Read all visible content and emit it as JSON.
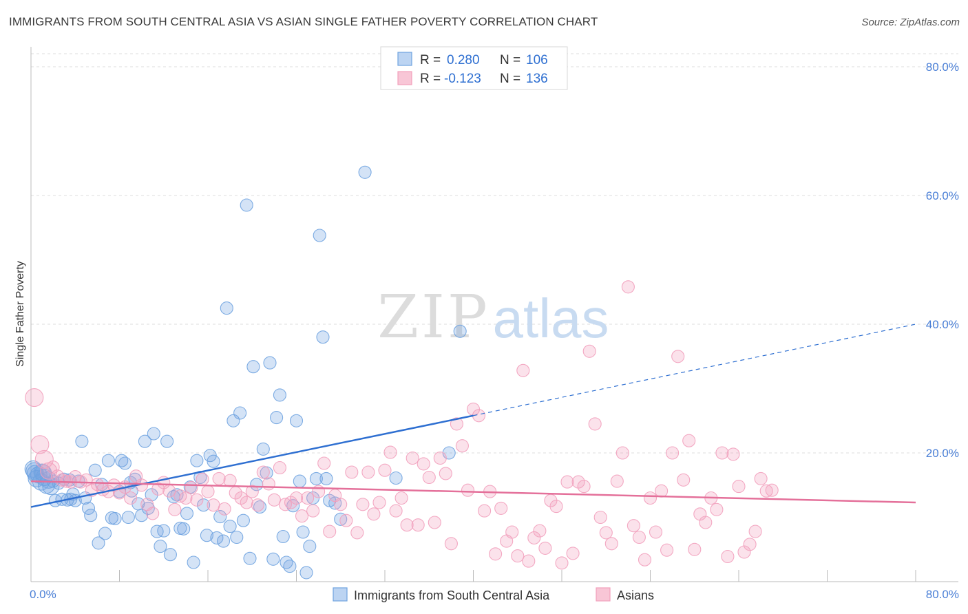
{
  "title": "IMMIGRANTS FROM SOUTH CENTRAL ASIA VS ASIAN SINGLE FATHER POVERTY CORRELATION CHART",
  "source": "Source: ZipAtlas.com",
  "watermark": {
    "zip": "ZIP",
    "atlas": "atlas"
  },
  "chart_data": {
    "type": "scatter",
    "xlabel": "",
    "ylabel": "Single Father Poverty",
    "xlim": [
      0,
      80
    ],
    "ylim": [
      0,
      80
    ],
    "x_tick_labels": [
      "0.0%",
      "80.0%"
    ],
    "y_ticks": [
      20,
      40,
      60,
      80
    ],
    "y_tick_labels": [
      "20.0%",
      "40.0%",
      "60.0%",
      "80.0%"
    ],
    "grid": true,
    "legend_position": "top-center",
    "legend": [
      {
        "r_label": "R =",
        "r_value": "0.280",
        "n_label": "N =",
        "n_value": "106"
      },
      {
        "r_label": "R =",
        "r_value": "-0.123",
        "n_label": "N =",
        "n_value": "136"
      }
    ],
    "series": [
      {
        "name": "Immigrants from South Central Asia",
        "color": "#6fa3e0",
        "line_color": "#2e6fd1",
        "trend": {
          "x0": 0,
          "y0": 11.6,
          "x1": 40,
          "y1": 25.8,
          "dash_to_x": 80,
          "dash_to_y": 40.0
        },
        "points": [
          [
            0.2,
            17.5
          ],
          [
            0.4,
            16.8
          ],
          [
            0.5,
            16.0
          ],
          [
            0.7,
            16.6
          ],
          [
            0.9,
            15.5
          ],
          [
            1.0,
            17.0
          ],
          [
            1.2,
            16.2
          ],
          [
            1.4,
            15.0
          ],
          [
            1.6,
            15.8
          ],
          [
            1.8,
            14.8
          ],
          [
            2.0,
            15.6
          ],
          [
            2.2,
            12.6
          ],
          [
            2.5,
            15.3
          ],
          [
            2.8,
            12.8
          ],
          [
            3.0,
            15.9
          ],
          [
            3.3,
            12.7
          ],
          [
            3.5,
            15.8
          ],
          [
            3.8,
            13.6
          ],
          [
            4.0,
            12.6
          ],
          [
            4.3,
            15.6
          ],
          [
            4.6,
            21.8
          ],
          [
            4.9,
            13.0
          ],
          [
            5.2,
            11.4
          ],
          [
            5.4,
            10.3
          ],
          [
            5.8,
            17.3
          ],
          [
            6.1,
            6.0
          ],
          [
            6.4,
            15.1
          ],
          [
            6.7,
            7.5
          ],
          [
            7.0,
            18.8
          ],
          [
            7.3,
            9.9
          ],
          [
            7.6,
            9.8
          ],
          [
            8.0,
            14.0
          ],
          [
            8.2,
            18.8
          ],
          [
            8.5,
            18.4
          ],
          [
            8.8,
            10.0
          ],
          [
            9.1,
            14.1
          ],
          [
            9.4,
            15.9
          ],
          [
            9.7,
            12.1
          ],
          [
            10.0,
            10.3
          ],
          [
            10.3,
            21.8
          ],
          [
            10.6,
            11.4
          ],
          [
            10.9,
            13.5
          ],
          [
            11.1,
            23.0
          ],
          [
            11.4,
            7.8
          ],
          [
            11.7,
            5.5
          ],
          [
            12.0,
            7.9
          ],
          [
            12.3,
            21.8
          ],
          [
            12.6,
            4.2
          ],
          [
            12.9,
            13.2
          ],
          [
            13.2,
            13.5
          ],
          [
            13.5,
            8.3
          ],
          [
            13.8,
            8.2
          ],
          [
            14.1,
            10.6
          ],
          [
            14.4,
            14.7
          ],
          [
            14.7,
            3.0
          ],
          [
            15.0,
            18.8
          ],
          [
            15.3,
            16.2
          ],
          [
            15.6,
            11.9
          ],
          [
            15.9,
            7.2
          ],
          [
            16.2,
            19.6
          ],
          [
            16.5,
            18.7
          ],
          [
            16.8,
            6.8
          ],
          [
            17.1,
            10.1
          ],
          [
            17.4,
            6.3
          ],
          [
            17.7,
            42.5
          ],
          [
            18.0,
            8.6
          ],
          [
            18.3,
            25.0
          ],
          [
            18.6,
            6.9
          ],
          [
            18.9,
            26.2
          ],
          [
            19.2,
            9.5
          ],
          [
            19.5,
            58.5
          ],
          [
            19.8,
            3.6
          ],
          [
            20.1,
            33.4
          ],
          [
            20.4,
            15.1
          ],
          [
            20.7,
            11.6
          ],
          [
            21.0,
            20.6
          ],
          [
            21.3,
            16.9
          ],
          [
            21.6,
            34.0
          ],
          [
            21.9,
            3.5
          ],
          [
            22.2,
            25.5
          ],
          [
            22.5,
            29.0
          ],
          [
            22.8,
            7.0
          ],
          [
            23.1,
            3.0
          ],
          [
            23.4,
            2.4
          ],
          [
            23.7,
            11.8
          ],
          [
            24.0,
            25.0
          ],
          [
            24.3,
            15.6
          ],
          [
            24.6,
            7.7
          ],
          [
            24.9,
            1.4
          ],
          [
            25.2,
            5.5
          ],
          [
            25.5,
            13.0
          ],
          [
            25.8,
            16.0
          ],
          [
            26.1,
            53.8
          ],
          [
            26.4,
            38.0
          ],
          [
            26.7,
            16.0
          ],
          [
            27.0,
            12.6
          ],
          [
            27.5,
            12.2
          ],
          [
            28.0,
            9.7
          ],
          [
            30.2,
            63.6
          ],
          [
            33.0,
            16.1
          ],
          [
            37.8,
            20.0
          ],
          [
            38.8,
            38.9
          ],
          [
            0.3,
            17.2
          ],
          [
            1.1,
            16.9
          ],
          [
            3.6,
            12.8
          ],
          [
            9.0,
            15.4
          ]
        ]
      },
      {
        "name": "Asians",
        "color": "#f2a0bc",
        "line_color": "#e4709a",
        "trend": {
          "x0": 0,
          "y0": 15.6,
          "x1": 80,
          "y1": 12.3
        },
        "points": [
          [
            0.3,
            28.6
          ],
          [
            0.8,
            21.3
          ],
          [
            1.2,
            19.0
          ],
          [
            1.6,
            17.2
          ],
          [
            2.0,
            17.8
          ],
          [
            2.4,
            16.4
          ],
          [
            2.8,
            15.8
          ],
          [
            3.2,
            15.6
          ],
          [
            3.6,
            15.5
          ],
          [
            4.0,
            16.3
          ],
          [
            4.5,
            15.5
          ],
          [
            5.0,
            15.8
          ],
          [
            5.5,
            14.2
          ],
          [
            6.0,
            15.1
          ],
          [
            6.5,
            14.3
          ],
          [
            7.0,
            14.0
          ],
          [
            7.5,
            15.0
          ],
          [
            8.0,
            13.8
          ],
          [
            8.5,
            14.7
          ],
          [
            9.0,
            13.0
          ],
          [
            9.5,
            16.4
          ],
          [
            10.0,
            15.0
          ],
          [
            10.5,
            12.0
          ],
          [
            11.0,
            10.6
          ],
          [
            11.5,
            14.4
          ],
          [
            12.0,
            15.4
          ],
          [
            12.5,
            14.1
          ],
          [
            13.0,
            11.2
          ],
          [
            13.5,
            13.3
          ],
          [
            14.0,
            13.0
          ],
          [
            14.5,
            14.6
          ],
          [
            15.0,
            12.7
          ],
          [
            15.5,
            15.9
          ],
          [
            16.0,
            14.0
          ],
          [
            16.5,
            11.9
          ],
          [
            17.0,
            16.0
          ],
          [
            17.5,
            11.3
          ],
          [
            18.0,
            15.7
          ],
          [
            18.5,
            13.8
          ],
          [
            19.0,
            13.0
          ],
          [
            19.5,
            12.3
          ],
          [
            20.0,
            14.0
          ],
          [
            20.5,
            11.9
          ],
          [
            21.0,
            17.0
          ],
          [
            21.5,
            15.2
          ],
          [
            22.0,
            12.7
          ],
          [
            22.5,
            17.7
          ],
          [
            23.0,
            12.0
          ],
          [
            23.5,
            12.3
          ],
          [
            24.0,
            13.0
          ],
          [
            24.5,
            10.2
          ],
          [
            25.0,
            13.0
          ],
          [
            25.5,
            11.0
          ],
          [
            26.0,
            14.0
          ],
          [
            26.5,
            18.4
          ],
          [
            27.0,
            7.8
          ],
          [
            27.5,
            13.4
          ],
          [
            28.0,
            12.0
          ],
          [
            28.5,
            9.5
          ],
          [
            29.0,
            17.0
          ],
          [
            29.5,
            7.6
          ],
          [
            30.0,
            12.0
          ],
          [
            30.5,
            17.0
          ],
          [
            31.0,
            10.5
          ],
          [
            31.5,
            12.3
          ],
          [
            32.0,
            17.3
          ],
          [
            32.5,
            20.1
          ],
          [
            33.0,
            11.0
          ],
          [
            33.5,
            13.0
          ],
          [
            34.0,
            8.8
          ],
          [
            34.5,
            19.2
          ],
          [
            35.0,
            8.8
          ],
          [
            35.5,
            18.3
          ],
          [
            36.0,
            16.2
          ],
          [
            36.5,
            9.2
          ],
          [
            37.0,
            19.2
          ],
          [
            37.5,
            16.8
          ],
          [
            38.0,
            5.9
          ],
          [
            38.5,
            24.5
          ],
          [
            39.0,
            21.1
          ],
          [
            39.5,
            14.2
          ],
          [
            40.0,
            26.8
          ],
          [
            40.5,
            25.8
          ],
          [
            41.0,
            11.0
          ],
          [
            41.5,
            14.0
          ],
          [
            42.0,
            4.3
          ],
          [
            42.5,
            11.4
          ],
          [
            43.0,
            6.3
          ],
          [
            43.5,
            7.7
          ],
          [
            44.0,
            4.0
          ],
          [
            44.5,
            32.8
          ],
          [
            45.0,
            3.2
          ],
          [
            45.5,
            6.8
          ],
          [
            46.0,
            7.9
          ],
          [
            46.5,
            5.2
          ],
          [
            47.0,
            12.6
          ],
          [
            47.5,
            11.7
          ],
          [
            48.0,
            2.9
          ],
          [
            48.5,
            15.5
          ],
          [
            49.0,
            4.4
          ],
          [
            49.5,
            15.5
          ],
          [
            50.0,
            14.8
          ],
          [
            50.5,
            35.8
          ],
          [
            51.0,
            24.5
          ],
          [
            51.5,
            10.0
          ],
          [
            52.0,
            7.6
          ],
          [
            52.5,
            5.9
          ],
          [
            53.0,
            15.6
          ],
          [
            53.5,
            20.0
          ],
          [
            54.0,
            45.8
          ],
          [
            54.5,
            8.7
          ],
          [
            55.0,
            6.9
          ],
          [
            55.5,
            3.4
          ],
          [
            56.0,
            13.0
          ],
          [
            56.5,
            7.7
          ],
          [
            57.0,
            14.1
          ],
          [
            57.5,
            4.9
          ],
          [
            58.0,
            20.0
          ],
          [
            58.5,
            35.0
          ],
          [
            59.0,
            15.8
          ],
          [
            59.5,
            21.9
          ],
          [
            60.0,
            5.0
          ],
          [
            60.5,
            10.5
          ],
          [
            61.0,
            9.2
          ],
          [
            61.5,
            13.0
          ],
          [
            62.0,
            11.2
          ],
          [
            62.5,
            20.0
          ],
          [
            63.0,
            3.9
          ],
          [
            63.5,
            19.8
          ],
          [
            64.0,
            14.8
          ],
          [
            64.5,
            4.6
          ],
          [
            65.0,
            5.8
          ],
          [
            65.5,
            7.8
          ],
          [
            66.0,
            16.0
          ],
          [
            66.5,
            14.1
          ],
          [
            67.0,
            14.2
          ]
        ]
      }
    ]
  },
  "bottom_legend": [
    "Immigrants from South Central Asia",
    "Asians"
  ]
}
